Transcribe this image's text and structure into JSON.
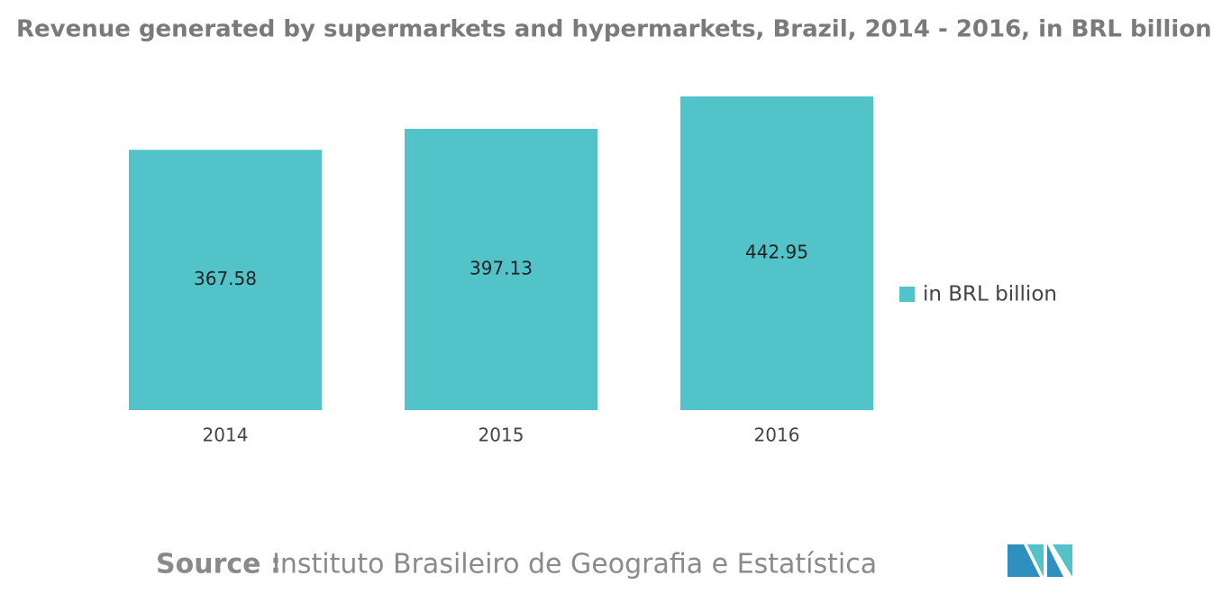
{
  "chart_data": {
    "type": "bar",
    "title": "Revenue generated by supermarkets and hypermarkets, Brazil, 2014 - 2016, in BRL billion",
    "categories": [
      "2014",
      "2015",
      "2016"
    ],
    "series": [
      {
        "name": "in BRL billion",
        "color": "#51c3c9",
        "values": [
          367.58,
          397.13,
          442.95
        ]
      }
    ],
    "legend": "right",
    "source_label": "Source :",
    "source": "Instituto Brasileiro de Geografia e Estatística"
  }
}
